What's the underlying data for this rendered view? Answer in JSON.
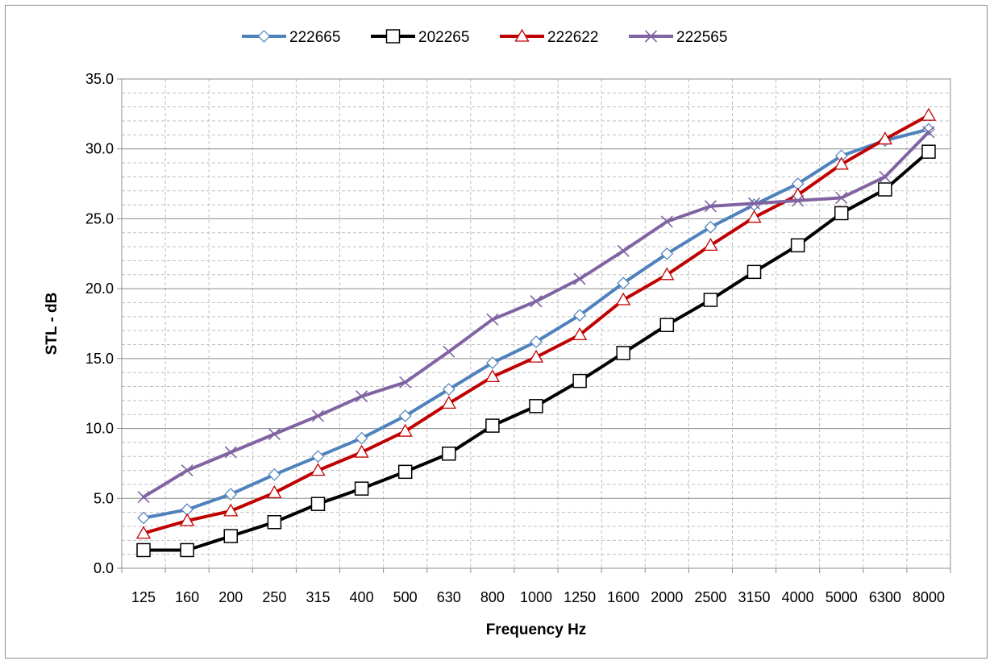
{
  "chart_data": {
    "type": "line",
    "title": "",
    "xlabel": "Frequency Hz",
    "ylabel": "STL - dB",
    "ylim": [
      0,
      35
    ],
    "y_major_step": 5,
    "y_minor_step": 1,
    "grid": true,
    "legend_position": "top",
    "categories": [
      "125",
      "160",
      "200",
      "250",
      "315",
      "400",
      "500",
      "630",
      "800",
      "1000",
      "1250",
      "1600",
      "2000",
      "2500",
      "3150",
      "4000",
      "5000",
      "6300",
      "8000"
    ],
    "y_tick_labels": [
      "0.0",
      "5.0",
      "10.0",
      "15.0",
      "20.0",
      "25.0",
      "30.0",
      "35.0"
    ],
    "series": [
      {
        "name": "222665",
        "color": "#4f81bd",
        "marker": "diamond",
        "values": [
          3.6,
          4.2,
          5.3,
          6.7,
          8.0,
          9.3,
          10.9,
          12.8,
          14.7,
          16.2,
          18.1,
          20.4,
          22.5,
          24.4,
          26.0,
          27.5,
          29.5,
          30.6,
          31.4
        ]
      },
      {
        "name": "202265",
        "color": "#000000",
        "marker": "square",
        "values": [
          1.3,
          1.3,
          2.3,
          3.3,
          4.6,
          5.7,
          6.9,
          8.2,
          10.2,
          11.6,
          13.4,
          15.4,
          17.4,
          19.2,
          21.2,
          23.1,
          25.4,
          27.1,
          29.8
        ]
      },
      {
        "name": "222622",
        "color": "#c00000",
        "marker": "triangle",
        "values": [
          2.5,
          3.4,
          4.1,
          5.4,
          7.0,
          8.3,
          9.8,
          11.8,
          13.7,
          15.1,
          16.7,
          19.2,
          21.0,
          23.1,
          25.1,
          26.7,
          28.9,
          30.7,
          32.4
        ]
      },
      {
        "name": "222565",
        "color": "#8064a2",
        "marker": "x",
        "values": [
          5.1,
          7.0,
          8.3,
          9.6,
          10.9,
          12.3,
          13.3,
          15.5,
          17.8,
          19.1,
          20.7,
          22.7,
          24.8,
          25.9,
          26.1,
          26.3,
          26.5,
          28.0,
          31.2
        ]
      }
    ]
  }
}
